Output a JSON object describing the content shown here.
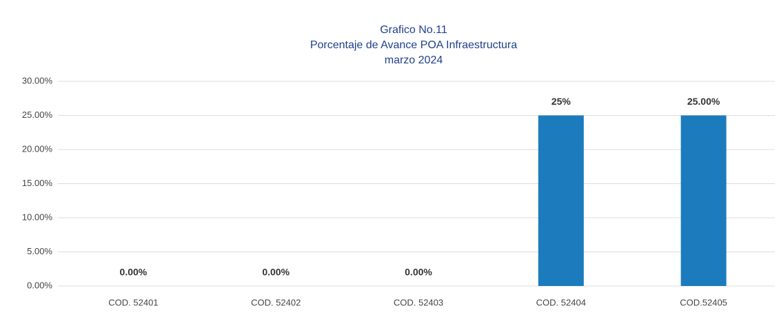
{
  "chart_data": {
    "type": "bar",
    "title": [
      "Grafico No.11",
      "Porcentaje de Avance POA Infraestructura",
      "marzo 2024"
    ],
    "categories": [
      "COD. 52401",
      "COD. 52402",
      "COD. 52403",
      "COD. 52404",
      "COD.52405"
    ],
    "values": [
      0,
      0,
      0,
      25,
      25
    ],
    "value_labels": [
      "0.00%",
      "0.00%",
      "0.00%",
      "25%",
      "25.00%"
    ],
    "color": "#1b7bbd",
    "ylim": [
      0,
      30
    ],
    "yticks": [
      {
        "value": 0,
        "label": "0.00%"
      },
      {
        "value": 5,
        "label": "5.00%"
      },
      {
        "value": 10,
        "label": "10.00%"
      },
      {
        "value": 15,
        "label": "15.00%"
      },
      {
        "value": 20,
        "label": "20.00%"
      },
      {
        "value": 25,
        "label": "25.00%"
      },
      {
        "value": 30,
        "label": "30.00%"
      }
    ],
    "grid": true
  }
}
